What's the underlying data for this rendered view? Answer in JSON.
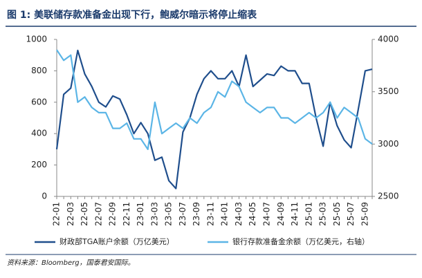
{
  "chart_data": {
    "type": "line",
    "title": "图 1: 美联储存款准备金出现下行，鲍威尔暗示将停止缩表",
    "source": "资料来源：Bloomberg，国泰君安国际。",
    "categories": [
      "22-01",
      null,
      "22-03",
      null,
      "22-05",
      null,
      "22-07",
      null,
      "22-09",
      null,
      "22-11",
      null,
      "23-01",
      null,
      "23-03",
      null,
      "23-05",
      null,
      "23-07",
      null,
      "23-09",
      null,
      "23-11",
      null,
      "24-01",
      null,
      "24-03",
      null,
      "24-05",
      null,
      "24-07",
      null,
      "24-09",
      null,
      "24-11",
      null,
      "25-01",
      null,
      "25-03",
      null,
      "25-05",
      null,
      "25-07",
      null,
      "25-09",
      null
    ],
    "series": [
      {
        "name": "财政部TGA账户余额（万亿美元）",
        "color": "#1f4e8c",
        "axis": "y",
        "values": [
          300,
          650,
          690,
          930,
          780,
          700,
          600,
          570,
          640,
          620,
          520,
          400,
          470,
          400,
          230,
          250,
          100,
          50,
          410,
          500,
          650,
          750,
          800,
          750,
          750,
          800,
          700,
          900,
          700,
          740,
          780,
          770,
          830,
          800,
          800,
          720,
          720,
          500,
          320,
          600,
          450,
          360,
          310,
          550,
          800,
          810
        ]
      },
      {
        "name": "银行存款准备金余额（万亿美元，右轴）",
        "color": "#5bb5e6",
        "axis": "y2",
        "values": [
          3900,
          3800,
          3850,
          3400,
          3450,
          3350,
          3300,
          3300,
          3150,
          3150,
          3200,
          3050,
          3050,
          2950,
          3400,
          3100,
          3150,
          3200,
          3150,
          3250,
          3200,
          3300,
          3350,
          3500,
          3450,
          3600,
          3550,
          3400,
          3350,
          3300,
          3350,
          3350,
          3250,
          3250,
          3200,
          3250,
          3300,
          3250,
          3300,
          3400,
          3250,
          3350,
          3300,
          3250,
          3050,
          3000
        ]
      }
    ],
    "ylim": [
      0,
      1000
    ],
    "yticks": [
      0,
      200,
      400,
      600,
      800,
      1000
    ],
    "y2lim": [
      2500,
      4000
    ],
    "y2ticks": [
      2500,
      3000,
      3500,
      4000
    ],
    "grid": false
  }
}
